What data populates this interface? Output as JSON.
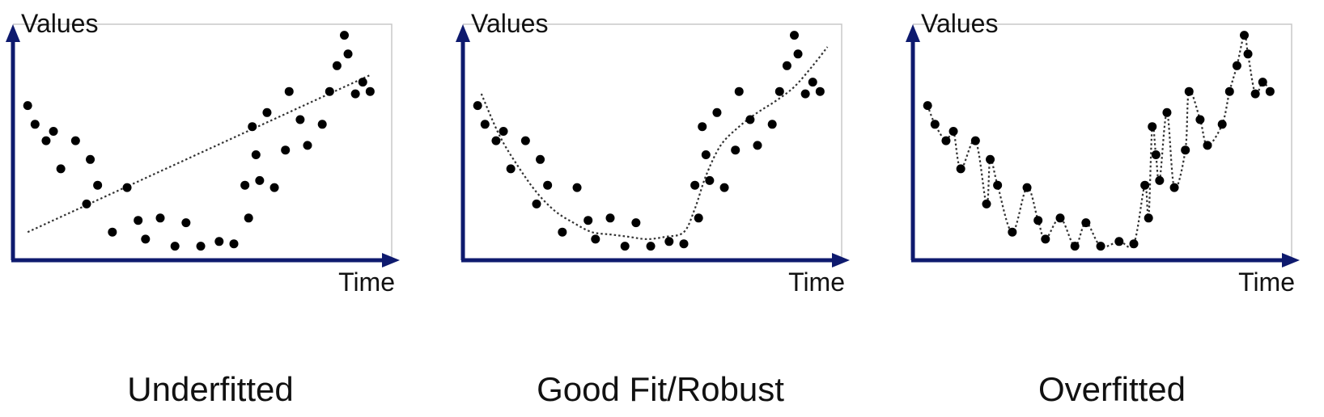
{
  "colors": {
    "axis": "#0e1a6e",
    "frame": "#c8c8c8",
    "point": "#000000",
    "curve": "#333333"
  },
  "chart_data": [
    {
      "type": "scatter",
      "fit": "linear",
      "caption": "Underfitted",
      "ylabel": "Values",
      "xlabel": "Time",
      "x": [
        0.04,
        0.06,
        0.09,
        0.11,
        0.13,
        0.17,
        0.2,
        0.21,
        0.23,
        0.27,
        0.31,
        0.34,
        0.36,
        0.4,
        0.44,
        0.47,
        0.51,
        0.56,
        0.6,
        0.63,
        0.64,
        0.65,
        0.66,
        0.67,
        0.69,
        0.71,
        0.74,
        0.75,
        0.78,
        0.8,
        0.84,
        0.86,
        0.88,
        0.9,
        0.91,
        0.93,
        0.95,
        0.97
      ],
      "y": [
        0.66,
        0.58,
        0.51,
        0.55,
        0.39,
        0.51,
        0.24,
        0.43,
        0.32,
        0.12,
        0.31,
        0.17,
        0.09,
        0.18,
        0.06,
        0.16,
        0.06,
        0.08,
        0.07,
        0.32,
        0.18,
        0.57,
        0.45,
        0.34,
        0.63,
        0.31,
        0.47,
        0.72,
        0.6,
        0.49,
        0.58,
        0.72,
        0.83,
        0.96,
        0.88,
        0.71,
        0.76,
        0.72
      ],
      "fit_x": [
        0.04,
        0.97
      ],
      "fit_y": [
        0.12,
        0.79
      ]
    },
    {
      "type": "scatter",
      "fit": "smooth",
      "caption": "Good Fit/Robust",
      "ylabel": "Values",
      "xlabel": "Time",
      "x": [
        0.04,
        0.06,
        0.09,
        0.11,
        0.13,
        0.17,
        0.2,
        0.21,
        0.23,
        0.27,
        0.31,
        0.34,
        0.36,
        0.4,
        0.44,
        0.47,
        0.51,
        0.56,
        0.6,
        0.63,
        0.64,
        0.65,
        0.66,
        0.67,
        0.69,
        0.71,
        0.74,
        0.75,
        0.78,
        0.8,
        0.84,
        0.86,
        0.88,
        0.9,
        0.91,
        0.93,
        0.95,
        0.97
      ],
      "y": [
        0.66,
        0.58,
        0.51,
        0.55,
        0.39,
        0.51,
        0.24,
        0.43,
        0.32,
        0.12,
        0.31,
        0.17,
        0.09,
        0.18,
        0.06,
        0.16,
        0.06,
        0.08,
        0.07,
        0.32,
        0.18,
        0.57,
        0.45,
        0.34,
        0.63,
        0.31,
        0.47,
        0.72,
        0.6,
        0.49,
        0.58,
        0.72,
        0.83,
        0.96,
        0.88,
        0.71,
        0.76,
        0.72
      ],
      "fit_x": [
        0.05,
        0.1,
        0.15,
        0.2,
        0.25,
        0.3,
        0.35,
        0.4,
        0.45,
        0.5,
        0.55,
        0.6,
        0.63,
        0.66,
        0.7,
        0.75,
        0.8,
        0.85,
        0.9,
        0.95,
        0.99
      ],
      "fit_y": [
        0.71,
        0.53,
        0.4,
        0.29,
        0.21,
        0.16,
        0.12,
        0.11,
        0.1,
        0.09,
        0.1,
        0.12,
        0.22,
        0.36,
        0.49,
        0.57,
        0.63,
        0.68,
        0.74,
        0.83,
        0.91
      ]
    },
    {
      "type": "scatter",
      "fit": "interpolate",
      "caption": "Overfitted",
      "ylabel": "Values",
      "xlabel": "Time",
      "x": [
        0.04,
        0.06,
        0.09,
        0.11,
        0.13,
        0.17,
        0.2,
        0.21,
        0.23,
        0.27,
        0.31,
        0.34,
        0.36,
        0.4,
        0.44,
        0.47,
        0.51,
        0.56,
        0.6,
        0.63,
        0.64,
        0.65,
        0.66,
        0.67,
        0.69,
        0.71,
        0.74,
        0.75,
        0.78,
        0.8,
        0.84,
        0.86,
        0.88,
        0.9,
        0.91,
        0.93,
        0.95,
        0.97
      ],
      "y": [
        0.66,
        0.58,
        0.51,
        0.55,
        0.39,
        0.51,
        0.24,
        0.43,
        0.32,
        0.12,
        0.31,
        0.17,
        0.09,
        0.18,
        0.06,
        0.16,
        0.06,
        0.08,
        0.07,
        0.32,
        0.18,
        0.57,
        0.45,
        0.34,
        0.63,
        0.31,
        0.47,
        0.72,
        0.6,
        0.49,
        0.58,
        0.72,
        0.83,
        0.96,
        0.88,
        0.71,
        0.76,
        0.72
      ]
    }
  ]
}
